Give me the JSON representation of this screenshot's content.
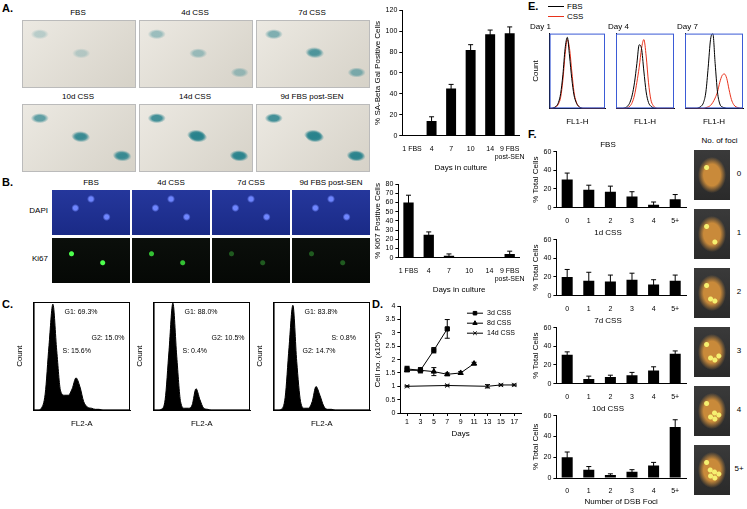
{
  "panel_labels": [
    "A.",
    "B.",
    "C.",
    "D.",
    "E.",
    "F."
  ],
  "micrographs": {
    "A": [
      "FBS",
      "4d CSS",
      "7d CSS",
      "10d CSS",
      "14d CSS",
      "9d FBS post-SEN"
    ],
    "B": {
      "columns": [
        "FBS",
        "4d CSS",
        "7d CSS",
        "9d  FBS post-SEN"
      ],
      "rows": [
        "DAPI",
        "Ki67"
      ]
    },
    "F": {
      "title": "No. of foci",
      "labels": [
        "0",
        "1",
        "2",
        "3",
        "4",
        "5+"
      ]
    }
  },
  "chart_data": [
    {
      "type": "bar",
      "categories": [
        "1 FBS",
        "4",
        "7",
        "10",
        "14",
        "9 FBS post-SEN"
      ],
      "values": [
        0,
        14,
        45,
        82,
        97,
        98
      ],
      "errors": [
        0,
        4,
        4,
        5,
        4,
        6
      ],
      "color": "#000000",
      "x_label": "Days in culture",
      "y_label": "% SA-Beta Gal Positive Cells",
      "ylim": [
        0,
        120
      ],
      "yticks": [
        0,
        20,
        40,
        60,
        80,
        100,
        120
      ]
    },
    {
      "type": "bar",
      "categories": [
        "1 FBS",
        "4",
        "7",
        "10",
        "14",
        "9 FBS post-SEN"
      ],
      "values": [
        60,
        25,
        2,
        0,
        0,
        4
      ],
      "errors": [
        8,
        3,
        2,
        0,
        0,
        3
      ],
      "color": "#000000",
      "x_label": "Days in culture",
      "y_label": "% Ki67 Positive Cells",
      "ylim": [
        0,
        80
      ],
      "yticks": [
        0,
        10,
        20,
        30,
        40,
        50,
        60,
        70,
        80
      ]
    },
    {
      "type": "area",
      "x": [
        0,
        4,
        8,
        12,
        16,
        20,
        24,
        28,
        32,
        36,
        40,
        44,
        48,
        52,
        56,
        60,
        64,
        68,
        72,
        76,
        80,
        84,
        88,
        92,
        96,
        100
      ],
      "values": [
        0,
        0,
        2,
        15,
        60,
        98,
        55,
        18,
        14,
        14,
        20,
        30,
        22,
        8,
        3,
        2,
        1,
        1,
        0,
        0,
        0,
        0,
        0,
        0,
        0,
        0
      ],
      "color": "#000000",
      "x_label": "FL2-A",
      "y_label": "Count",
      "annotations": [
        "G1: 69.3%",
        "G2: 15.0%",
        "S: 15.6%"
      ],
      "xlim": [
        0,
        100
      ],
      "ylim": [
        0,
        100
      ],
      "tick_labels": false
    },
    {
      "type": "area",
      "x": [
        0,
        4,
        8,
        12,
        16,
        20,
        24,
        28,
        32,
        36,
        40,
        44,
        48,
        52,
        56,
        60,
        64,
        68,
        72,
        76,
        80,
        84,
        88,
        92,
        96,
        100
      ],
      "values": [
        0,
        0,
        1,
        10,
        55,
        99,
        50,
        8,
        2,
        2,
        5,
        20,
        10,
        2,
        1,
        0,
        0,
        0,
        0,
        0,
        0,
        0,
        0,
        0,
        0,
        0
      ],
      "color": "#000000",
      "x_label": "FL2-A",
      "y_label": "Count",
      "annotations": [
        "G1: 88.0%",
        "G2: 10.5%",
        "S: 0.4%"
      ],
      "xlim": [
        0,
        100
      ],
      "ylim": [
        0,
        100
      ],
      "tick_labels": false
    },
    {
      "type": "area",
      "x": [
        0,
        4,
        8,
        12,
        16,
        20,
        24,
        28,
        32,
        36,
        40,
        44,
        48,
        52,
        56,
        60,
        64,
        68,
        72,
        76,
        80,
        84,
        88,
        92,
        96,
        100
      ],
      "values": [
        0,
        0,
        1,
        12,
        58,
        97,
        45,
        8,
        2,
        2,
        8,
        22,
        14,
        4,
        1,
        1,
        0,
        0,
        0,
        0,
        0,
        0,
        0,
        0,
        0,
        0
      ],
      "color": "#000000",
      "x_label": "FL2-A",
      "y_label": "Count",
      "annotations": [
        "G1: 83.8%",
        "S: 0.8%",
        "G2: 14.7%"
      ],
      "xlim": [
        0,
        100
      ],
      "ylim": [
        0,
        100
      ],
      "tick_labels": false
    },
    {
      "type": "line",
      "series": [
        {
          "name": "3d CSS",
          "color": "#000000",
          "marker": "square",
          "x": [
            1,
            3,
            5,
            7
          ],
          "values": [
            1.65,
            1.6,
            2.35,
            3.15
          ],
          "errors": [
            0.1,
            0.1,
            0.1,
            0.35
          ]
        },
        {
          "name": "8d CSS",
          "color": "#000000",
          "marker": "triangle",
          "x": [
            1,
            3,
            5,
            7,
            9,
            11
          ],
          "values": [
            1.6,
            1.6,
            1.55,
            1.45,
            1.5,
            1.85
          ],
          "errors": [
            0.05,
            0.05,
            0.15,
            0.05,
            0.05,
            0.05
          ]
        },
        {
          "name": "14d CSS",
          "color": "#000000",
          "marker": "cross",
          "x": [
            1,
            7,
            13,
            15,
            17
          ],
          "values": [
            1.0,
            1.03,
            1.0,
            1.05,
            1.05
          ],
          "errors": [
            0.02,
            0.02,
            0.06,
            0.03,
            0.03
          ]
        }
      ],
      "x_label": "Days",
      "y_label": "Cell no. (x10^5)",
      "xlim": [
        0,
        18
      ],
      "xticks": [
        1,
        3,
        5,
        7,
        9,
        11,
        13,
        15,
        17
      ],
      "ylim": [
        0,
        4
      ],
      "yticks": [
        0,
        0.5,
        1,
        1.5,
        2,
        2.5,
        3,
        3.5,
        4
      ],
      "legend": "upper right"
    },
    {
      "type": "line",
      "title": "Day 1",
      "x": [
        0,
        4,
        8,
        12,
        16,
        20,
        24,
        28,
        32,
        36,
        40,
        44,
        48,
        52,
        56,
        60,
        64,
        68,
        72,
        76,
        80,
        84,
        88,
        92,
        96,
        100
      ],
      "series": [
        {
          "name": "FBS",
          "color": "#000000",
          "values": [
            0,
            0,
            1,
            3,
            8,
            20,
            45,
            80,
            95,
            70,
            40,
            18,
            8,
            3,
            1,
            0,
            0,
            0,
            0,
            0,
            0,
            0,
            0,
            0,
            0,
            0
          ]
        },
        {
          "name": "CSS",
          "color": "#e8331c",
          "values": [
            0,
            0,
            1,
            2,
            6,
            15,
            38,
            72,
            92,
            80,
            50,
            22,
            9,
            3,
            1,
            0,
            0,
            0,
            0,
            0,
            0,
            0,
            0,
            0,
            0,
            0
          ]
        }
      ],
      "x_label": "FL1-H",
      "y_label": "Count",
      "xlim": [
        0,
        100
      ],
      "ylim": [
        0,
        100
      ],
      "tick_labels": false,
      "legend": "top"
    },
    {
      "type": "line",
      "title": "Day 4",
      "x": [
        0,
        4,
        8,
        12,
        16,
        20,
        24,
        28,
        32,
        36,
        40,
        44,
        48,
        52,
        56,
        60,
        64,
        68,
        72,
        76,
        80,
        84,
        88,
        92,
        96,
        100
      ],
      "series": [
        {
          "name": "FBS",
          "color": "#000000",
          "values": [
            0,
            0,
            0,
            0,
            1,
            3,
            8,
            18,
            35,
            60,
            85,
            80,
            50,
            22,
            8,
            3,
            1,
            0,
            0,
            0,
            0,
            0,
            0,
            0,
            0,
            0
          ]
        },
        {
          "name": "CSS",
          "color": "#e8331c",
          "values": [
            0,
            0,
            0,
            0,
            0,
            1,
            3,
            8,
            18,
            35,
            55,
            80,
            92,
            70,
            35,
            12,
            4,
            1,
            0,
            0,
            0,
            0,
            0,
            0,
            0,
            0
          ]
        }
      ],
      "x_label": "FL1-H",
      "xlim": [
        0,
        100
      ],
      "ylim": [
        0,
        100
      ],
      "tick_labels": false
    },
    {
      "type": "line",
      "title": "Day 7",
      "x": [
        0,
        4,
        8,
        12,
        16,
        20,
        24,
        28,
        32,
        36,
        40,
        44,
        48,
        52,
        56,
        60,
        64,
        68,
        72,
        76,
        80,
        84,
        88,
        92,
        96,
        100
      ],
      "series": [
        {
          "name": "FBS",
          "color": "#000000",
          "values": [
            0,
            0,
            0,
            0,
            0,
            0,
            1,
            3,
            8,
            22,
            55,
            92,
            100,
            60,
            22,
            6,
            2,
            1,
            0,
            0,
            0,
            0,
            0,
            0,
            0,
            0
          ]
        },
        {
          "name": "CSS",
          "color": "#e8331c",
          "values": [
            0,
            0,
            0,
            0,
            0,
            0,
            0,
            0,
            0,
            1,
            2,
            4,
            8,
            14,
            22,
            35,
            44,
            46,
            40,
            25,
            12,
            5,
            2,
            1,
            0,
            0
          ]
        }
      ],
      "x_label": "FL1-H",
      "xlim": [
        0,
        100
      ],
      "ylim": [
        0,
        100
      ],
      "tick_labels": false
    },
    {
      "type": "bar",
      "title": "FBS",
      "categories": [
        "0",
        "1",
        "2",
        "3",
        "4",
        "5+"
      ],
      "values": [
        30,
        19,
        17,
        12,
        3,
        9
      ],
      "errors": [
        7,
        5,
        6,
        5,
        3,
        5
      ],
      "color": "#000000",
      "y_label": "% Total Cells",
      "ylim": [
        0,
        60
      ],
      "yticks": [
        0,
        20,
        40,
        60
      ]
    },
    {
      "type": "bar",
      "title": "1d CSS",
      "categories": [
        "0",
        "1",
        "2",
        "3",
        "4",
        "5+"
      ],
      "values": [
        20,
        16,
        15,
        17,
        12,
        16
      ],
      "errors": [
        8,
        9,
        7,
        7,
        5,
        6
      ],
      "color": "#000000",
      "y_label": "% Total Cells",
      "ylim": [
        0,
        60
      ],
      "yticks": [
        0,
        20,
        40,
        60
      ]
    },
    {
      "type": "bar",
      "title": "7d CSS",
      "categories": [
        "0",
        "1",
        "2",
        "3",
        "4",
        "5+"
      ],
      "values": [
        31,
        5,
        7,
        9,
        14,
        32
      ],
      "errors": [
        3,
        3,
        2,
        3,
        4,
        3
      ],
      "color": "#000000",
      "y_label": "% Total Cells",
      "ylim": [
        0,
        60
      ],
      "yticks": [
        0,
        20,
        40,
        60
      ]
    },
    {
      "type": "bar",
      "title": "10d CSS",
      "categories": [
        "0",
        "1",
        "2",
        "3",
        "4",
        "5+"
      ],
      "values": [
        20,
        8,
        3,
        6,
        12,
        49
      ],
      "errors": [
        5,
        3,
        1,
        2,
        3,
        7
      ],
      "color": "#000000",
      "x_label": "Number of DSB Foci",
      "y_label": "% Total Cells",
      "ylim": [
        0,
        60
      ],
      "yticks": [
        0,
        20,
        40,
        60
      ]
    }
  ]
}
